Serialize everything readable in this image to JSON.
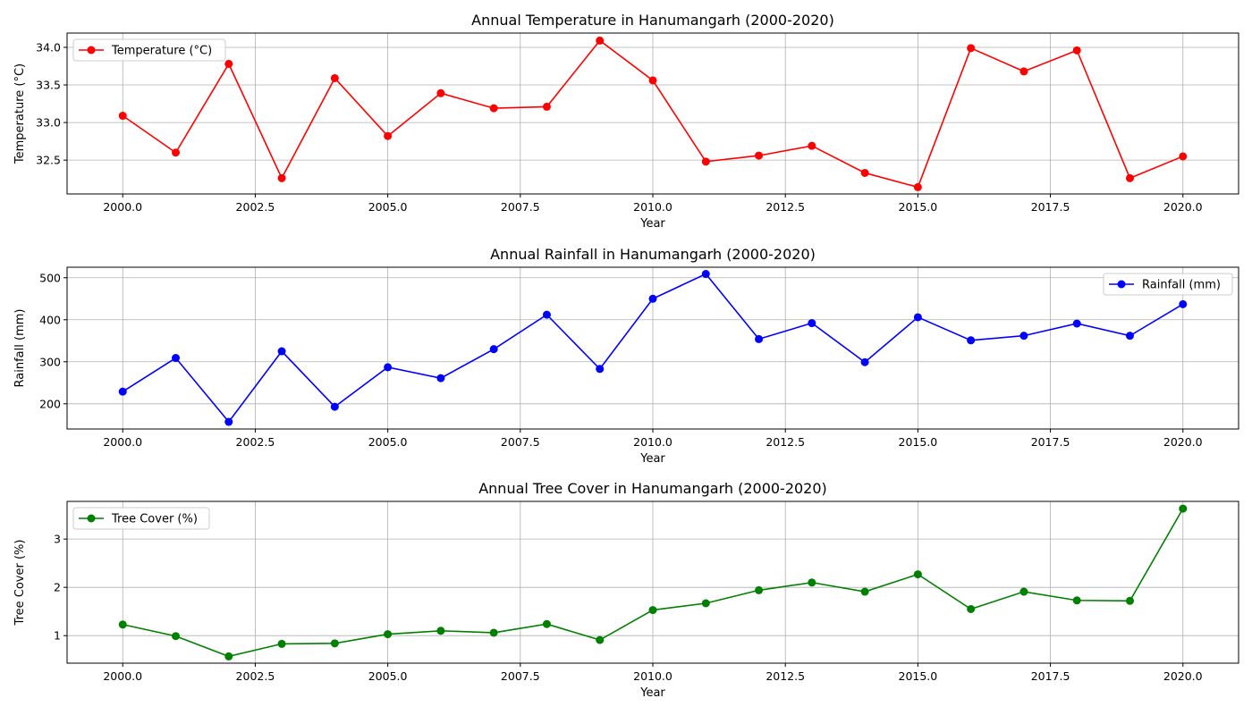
{
  "chart_data": [
    {
      "type": "line",
      "title": "Annual Temperature in Hanumangarh (2000-2020)",
      "xlabel": "Year",
      "ylabel": "Temperature (°C)",
      "xlim": [
        1998.95,
        2021.05
      ],
      "ylim": [
        32.05,
        34.19
      ],
      "xticks": [
        2000,
        2002.5,
        2005,
        2007.5,
        2010,
        2012.5,
        2015,
        2017.5,
        2020
      ],
      "xtick_labels": [
        "2000.0",
        "2002.5",
        "2005.0",
        "2007.5",
        "2010.0",
        "2012.5",
        "2015.0",
        "2017.5",
        "2020.0"
      ],
      "yticks": [
        32.5,
        33.0,
        33.5,
        34.0
      ],
      "ytick_labels": [
        "32.5",
        "33.0",
        "33.5",
        "34.0"
      ],
      "grid": true,
      "legend": "upper-left",
      "color": "#ff0000",
      "series": [
        {
          "name": "Temperature (°C)",
          "x": [
            2000,
            2001,
            2002,
            2003,
            2004,
            2005,
            2006,
            2007,
            2008,
            2009,
            2010,
            2011,
            2012,
            2013,
            2014,
            2015,
            2016,
            2017,
            2018,
            2019,
            2020
          ],
          "values": [
            33.09,
            32.6,
            33.78,
            32.26,
            33.59,
            32.82,
            33.39,
            33.19,
            33.21,
            34.09,
            33.56,
            32.48,
            32.56,
            32.69,
            32.33,
            32.14,
            33.99,
            33.68,
            33.96,
            32.26,
            32.55
          ]
        }
      ]
    },
    {
      "type": "line",
      "title": "Annual Rainfall in Hanumangarh (2000-2020)",
      "xlabel": "Year",
      "ylabel": "Rainfall (mm)",
      "xlim": [
        1998.95,
        2021.05
      ],
      "ylim": [
        140,
        525
      ],
      "xticks": [
        2000,
        2002.5,
        2005,
        2007.5,
        2010,
        2012.5,
        2015,
        2017.5,
        2020
      ],
      "xtick_labels": [
        "2000.0",
        "2002.5",
        "2005.0",
        "2007.5",
        "2010.0",
        "2012.5",
        "2015.0",
        "2017.5",
        "2020.0"
      ],
      "yticks": [
        200,
        300,
        400,
        500
      ],
      "ytick_labels": [
        "200",
        "300",
        "400",
        "500"
      ],
      "grid": true,
      "legend": "upper-right",
      "color": "#0000ff",
      "series": [
        {
          "name": "Rainfall (mm)",
          "x": [
            2000,
            2001,
            2002,
            2003,
            2004,
            2005,
            2006,
            2007,
            2008,
            2009,
            2010,
            2011,
            2012,
            2013,
            2014,
            2015,
            2016,
            2017,
            2018,
            2019,
            2020
          ],
          "values": [
            229,
            309,
            157,
            325,
            193,
            287,
            261,
            330,
            412,
            283,
            450,
            509,
            354,
            392,
            299,
            406,
            351,
            362,
            391,
            362,
            437
          ]
        }
      ]
    },
    {
      "type": "line",
      "title": "Annual Tree Cover in Hanumangarh (2000-2020)",
      "xlabel": "Year",
      "ylabel": "Tree Cover (%)",
      "xlim": [
        1998.95,
        2021.05
      ],
      "ylim": [
        0.43,
        3.78
      ],
      "xticks": [
        2000,
        2002.5,
        2005,
        2007.5,
        2010,
        2012.5,
        2015,
        2017.5,
        2020
      ],
      "xtick_labels": [
        "2000.0",
        "2002.5",
        "2005.0",
        "2007.5",
        "2010.0",
        "2012.5",
        "2015.0",
        "2017.5",
        "2020.0"
      ],
      "yticks": [
        1,
        2,
        3
      ],
      "ytick_labels": [
        "1",
        "2",
        "3"
      ],
      "grid": true,
      "legend": "upper-left",
      "color": "#008000",
      "series": [
        {
          "name": "Tree Cover (%)",
          "x": [
            2000,
            2001,
            2002,
            2003,
            2004,
            2005,
            2006,
            2007,
            2008,
            2009,
            2010,
            2011,
            2012,
            2013,
            2014,
            2015,
            2016,
            2017,
            2018,
            2019,
            2020
          ],
          "values": [
            1.23,
            0.99,
            0.57,
            0.83,
            0.84,
            1.03,
            1.1,
            1.06,
            1.24,
            0.91,
            1.53,
            1.67,
            1.94,
            2.1,
            1.91,
            2.27,
            1.55,
            1.91,
            1.73,
            1.72,
            3.63
          ]
        }
      ]
    }
  ]
}
